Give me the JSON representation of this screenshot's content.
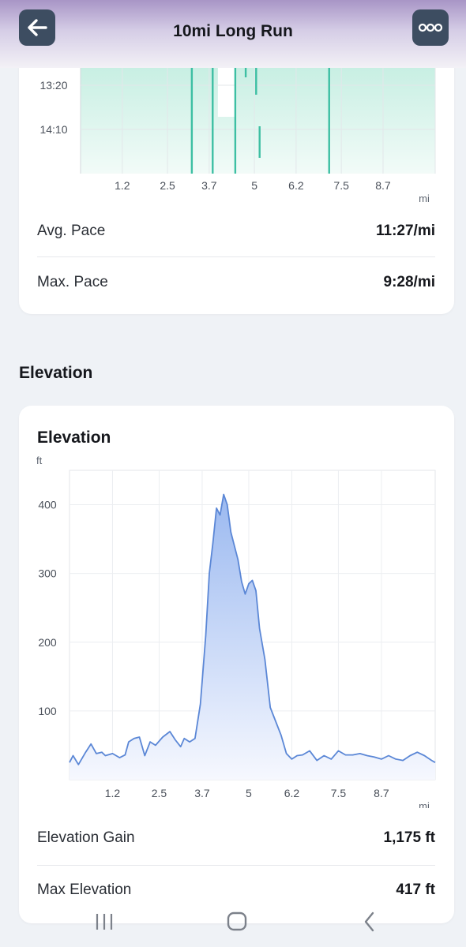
{
  "header": {
    "title": "10mi Long Run",
    "back_icon": "arrow-left-icon",
    "more_icon": "more-horizontal-icon"
  },
  "pace_card": {
    "y_ticks": [
      "13:20",
      "14:10"
    ],
    "x_ticks": [
      "1.2",
      "2.5",
      "3.7",
      "5",
      "6.2",
      "7.5",
      "8.7"
    ],
    "x_unit": "mi",
    "accent": "#3dbfa3",
    "stats": [
      {
        "label": "Avg. Pace",
        "value": "11:27/mi"
      },
      {
        "label": "Max. Pace",
        "value": "9:28/mi"
      }
    ]
  },
  "elevation_section": {
    "heading": "Elevation"
  },
  "elevation_card": {
    "title": "Elevation",
    "y_unit": "ft",
    "x_unit": "mi",
    "stats": [
      {
        "label": "Elevation Gain",
        "value": "1,175 ft"
      },
      {
        "label": "Max Elevation",
        "value": "417 ft"
      }
    ]
  },
  "nav": {
    "recents_icon": "recent-apps-icon",
    "home_icon": "home-icon",
    "back_icon": "back-chevron-icon"
  },
  "chart_data": [
    {
      "type": "line",
      "ylabel": "",
      "xlabel": "mi",
      "y_ticks": [
        "13:20",
        "14:10"
      ],
      "x_ticks": [
        1.2,
        2.5,
        3.7,
        5,
        6.2,
        7.5,
        8.7
      ],
      "color": "#3dbfa3",
      "fill": "area",
      "grid": true
    },
    {
      "type": "area",
      "title": "Elevation",
      "ylabel": "ft",
      "xlabel": "mi",
      "x_ticks": [
        1.2,
        2.5,
        3.7,
        5,
        6.2,
        7.5,
        8.7
      ],
      "y_ticks": [
        100,
        200,
        300,
        400
      ],
      "xlim": [
        0,
        10.2
      ],
      "ylim": [
        0,
        450
      ],
      "color": "#5b87d6",
      "grid": true,
      "series": [
        {
          "x": [
            0,
            0.1,
            0.25,
            0.45,
            0.6,
            0.75,
            0.9,
            1.0,
            1.2,
            1.4,
            1.55,
            1.65,
            1.8,
            1.95,
            2.1,
            2.25,
            2.4,
            2.6,
            2.8,
            2.95,
            3.1,
            3.2,
            3.35,
            3.5,
            3.65,
            3.8,
            3.9,
            4.0,
            4.1,
            4.2,
            4.3,
            4.4,
            4.5,
            4.6,
            4.7,
            4.8,
            4.9,
            5.0,
            5.1,
            5.2,
            5.3,
            5.45,
            5.6,
            5.75,
            5.9,
            6.05,
            6.2,
            6.35,
            6.5,
            6.7,
            6.9,
            7.1,
            7.3,
            7.5,
            7.7,
            7.9,
            8.1,
            8.3,
            8.5,
            8.7,
            8.9,
            9.1,
            9.3,
            9.5,
            9.7,
            9.9,
            10.1,
            10.2
          ],
          "y": [
            25,
            35,
            22,
            40,
            52,
            38,
            40,
            35,
            38,
            32,
            36,
            55,
            60,
            62,
            35,
            55,
            50,
            62,
            70,
            58,
            48,
            60,
            55,
            60,
            110,
            210,
            300,
            345,
            395,
            385,
            415,
            400,
            360,
            340,
            320,
            288,
            270,
            285,
            290,
            275,
            220,
            175,
            105,
            85,
            65,
            38,
            30,
            35,
            36,
            42,
            28,
            35,
            30,
            42,
            36,
            36,
            38,
            35,
            33,
            30,
            35,
            30,
            28,
            35,
            40,
            35,
            28,
            25
          ]
        }
      ]
    }
  ]
}
